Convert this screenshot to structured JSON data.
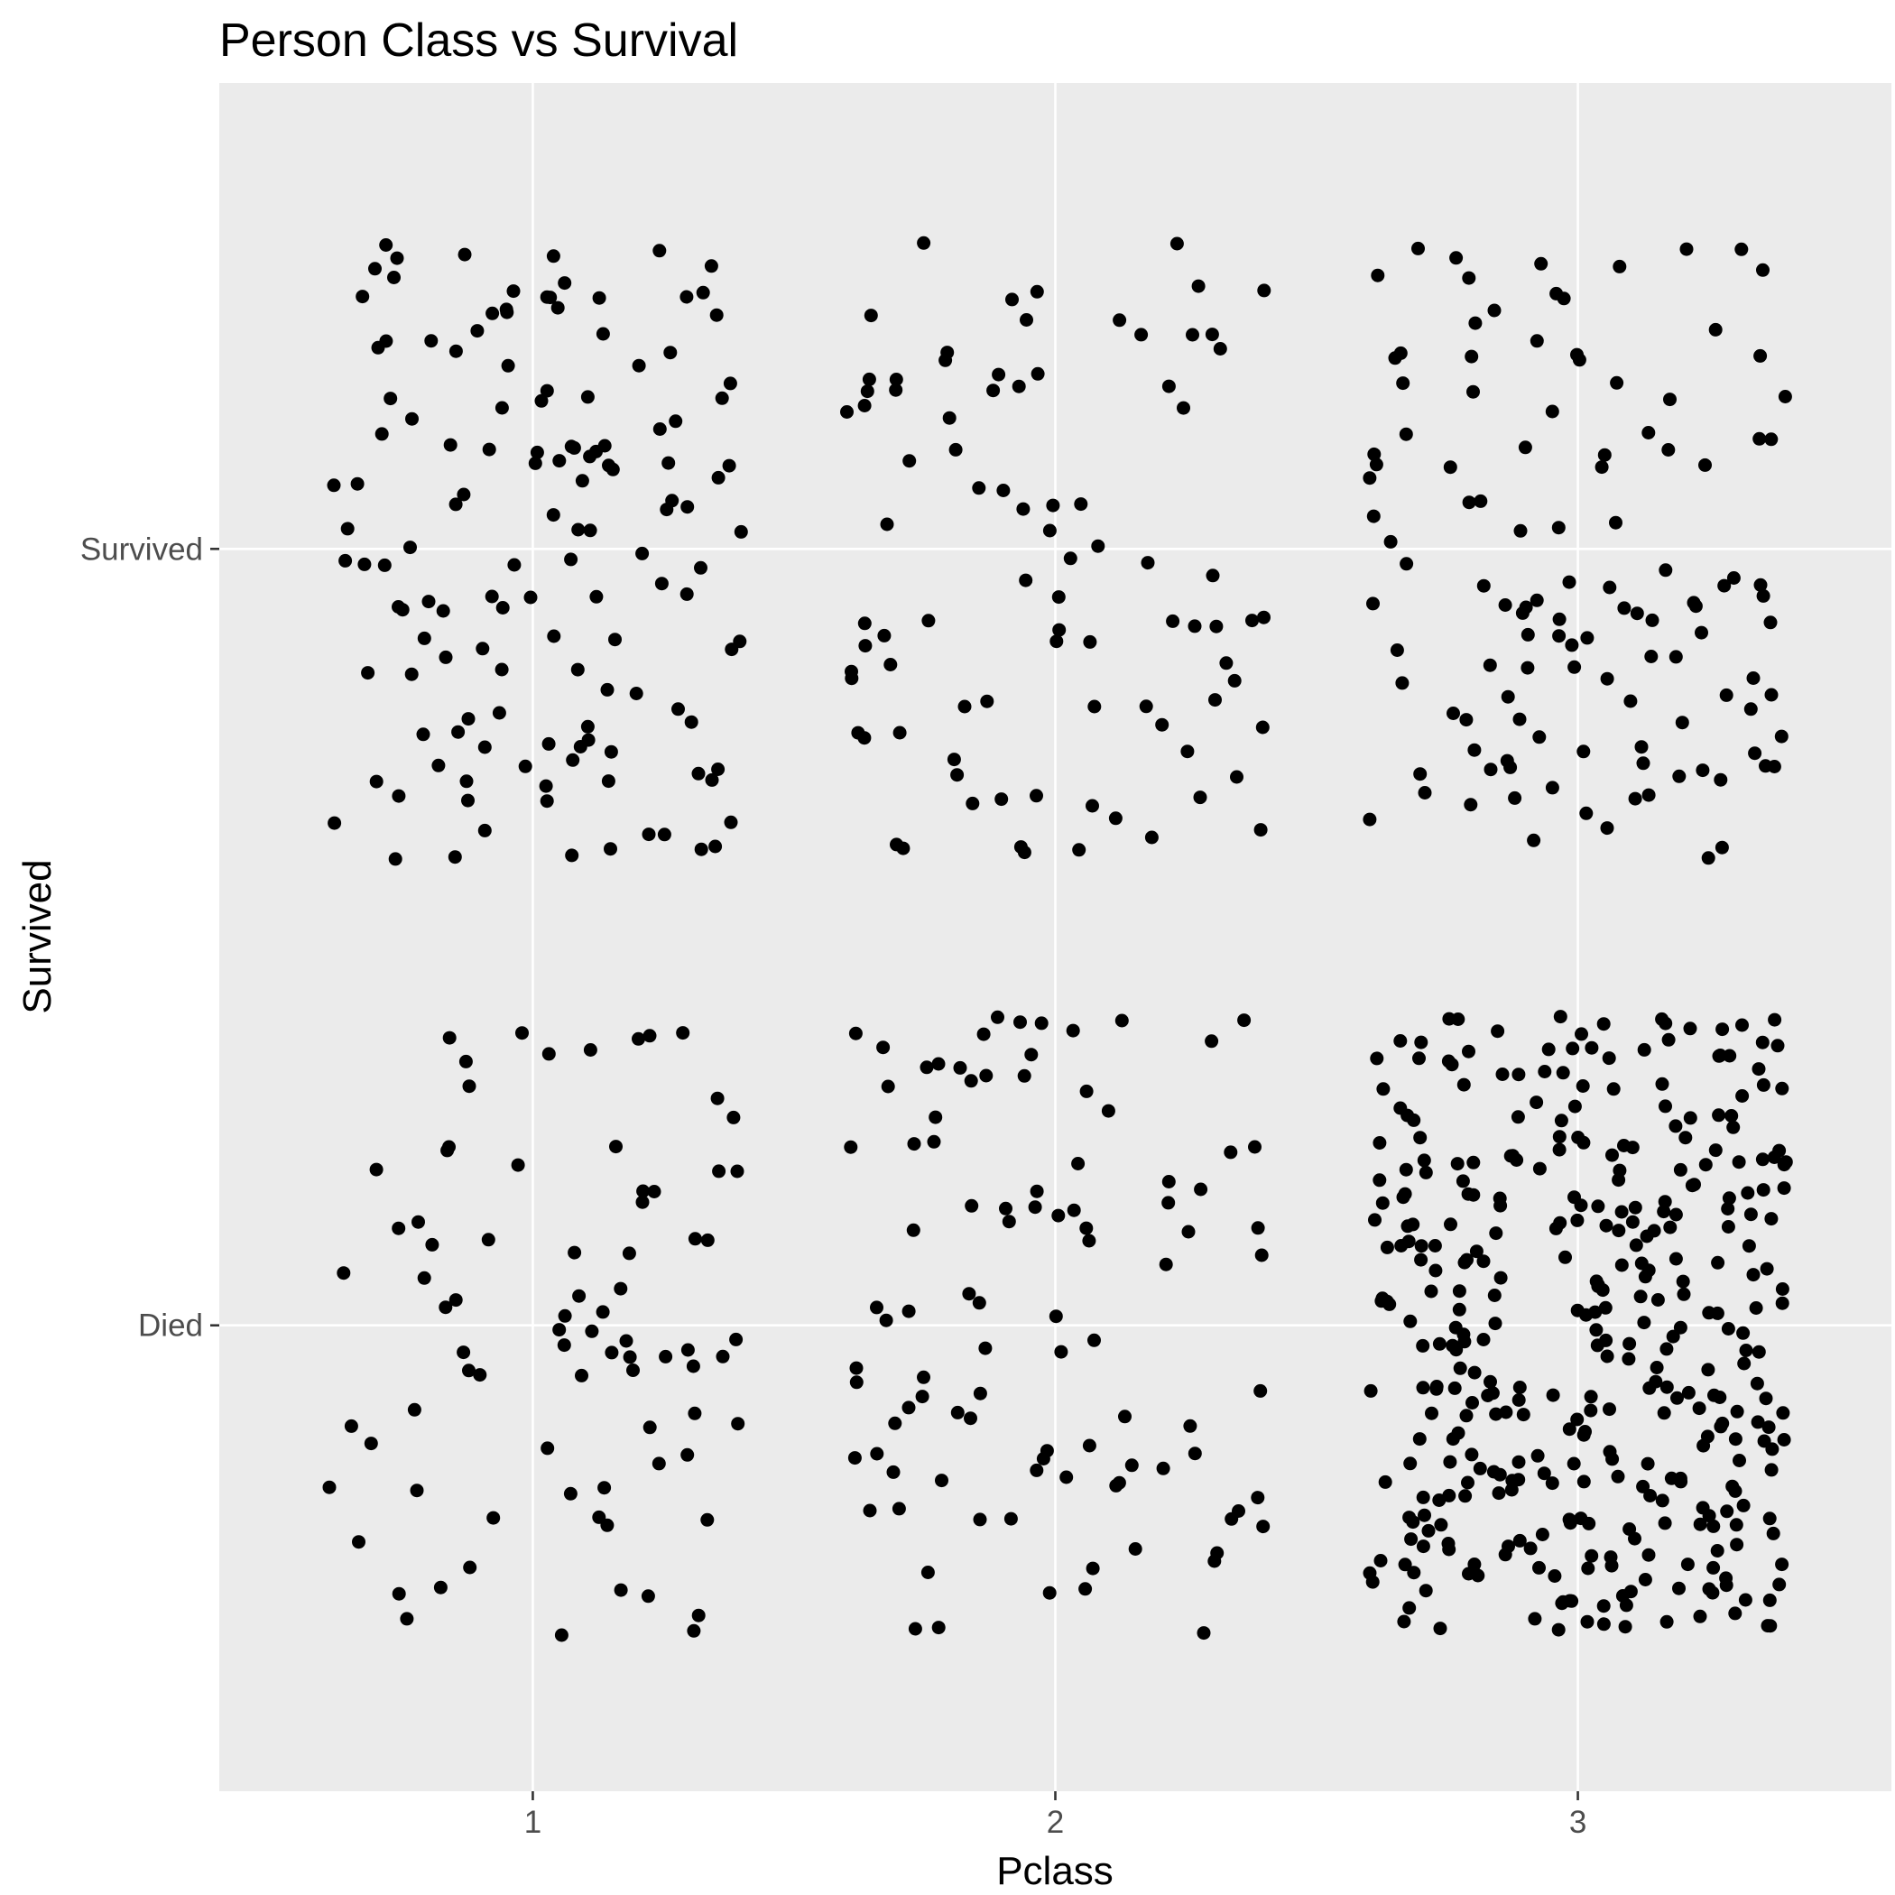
{
  "chart_data": {
    "type": "scatter",
    "title": "Person Class vs Survival",
    "xlabel": "Pclass",
    "ylabel": "Survived",
    "x_ticks": [
      "1",
      "2",
      "3"
    ],
    "y_ticks": [
      "Died",
      "Survived"
    ],
    "xlim": [
      0.4,
      3.6
    ],
    "ylim": [
      -0.6,
      1.6
    ],
    "grid": true,
    "jitter": {
      "width": 0.4,
      "height": 0.4
    },
    "groups": [
      {
        "pclass": 1,
        "survived": "Survived",
        "count": 136
      },
      {
        "pclass": 2,
        "survived": "Survived",
        "count": 87
      },
      {
        "pclass": 3,
        "survived": "Survived",
        "count": 119
      },
      {
        "pclass": 1,
        "survived": "Died",
        "count": 80
      },
      {
        "pclass": 2,
        "survived": "Died",
        "count": 97
      },
      {
        "pclass": 3,
        "survived": "Died",
        "count": 372
      }
    ],
    "point_color": "#000000",
    "panel_background": "#ebebeb",
    "grid_color": "#ffffff"
  }
}
